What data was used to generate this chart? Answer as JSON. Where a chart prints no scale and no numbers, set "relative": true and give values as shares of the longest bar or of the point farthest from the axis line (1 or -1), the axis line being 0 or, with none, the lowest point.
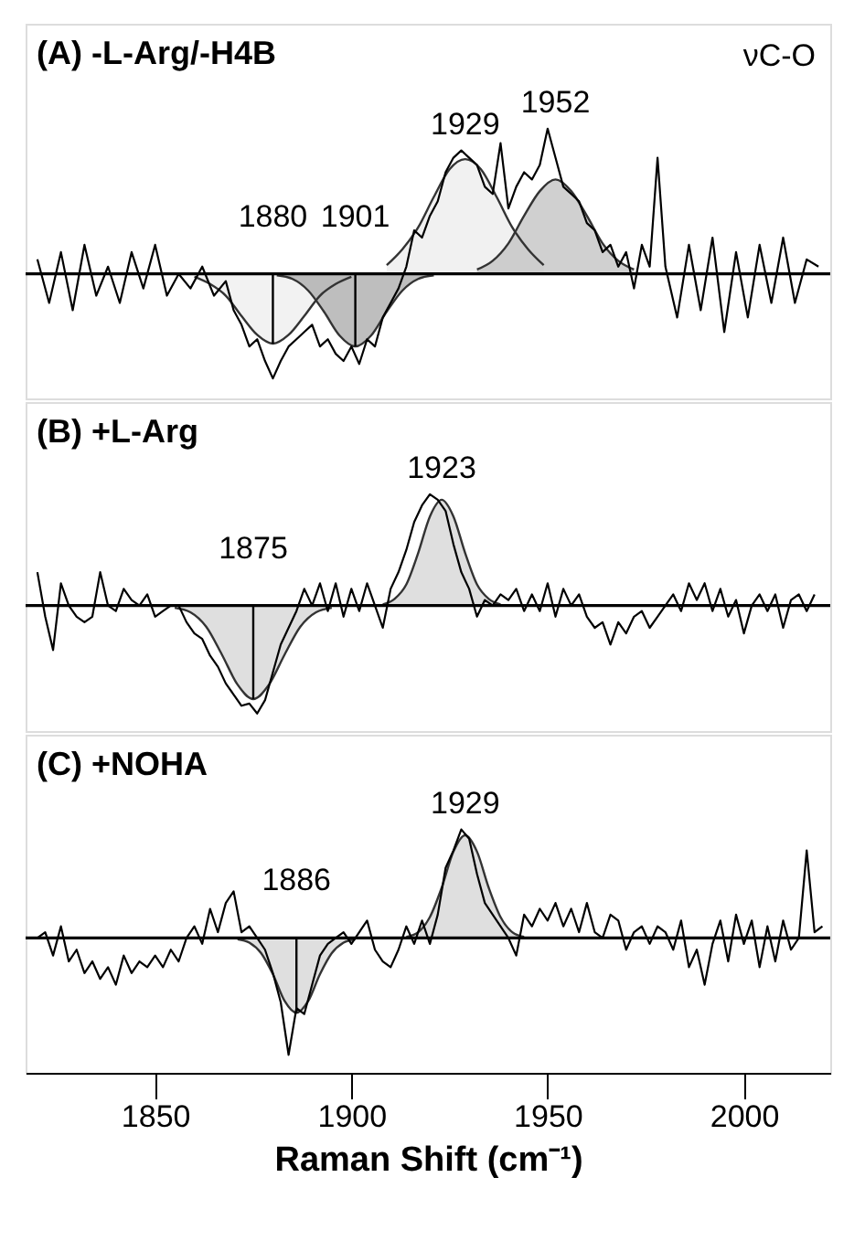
{
  "chart_data": [
    {
      "type": "line",
      "title": "(A) -L-Arg/-H4B",
      "relative": true,
      "xlim": [
        1817,
        2022
      ],
      "tick_labels": false,
      "grid": false,
      "annotations": [
        "νC-O",
        {
          "text": "1880",
          "x": 1880,
          "y": -0.48
        },
        {
          "text": "1901",
          "x": 1901,
          "y": -0.5
        },
        {
          "text": "1929",
          "x": 1929,
          "y": 0.79
        },
        {
          "text": "1952",
          "x": 1952,
          "y": 0.65
        }
      ],
      "series": [
        {
          "type": "area",
          "color": "#eeeeee",
          "x": [
            1860,
            1864,
            1868,
            1872,
            1876,
            1880,
            1884,
            1888,
            1892,
            1896,
            1900
          ],
          "values": [
            -0.02,
            -0.07,
            -0.15,
            -0.29,
            -0.42,
            -0.48,
            -0.42,
            -0.29,
            -0.15,
            -0.07,
            -0.02
          ]
        },
        {
          "type": "area",
          "color": "#a8a8a8",
          "x": [
            1881,
            1885,
            1889,
            1893,
            1897,
            1901,
            1905,
            1909,
            1913,
            1917,
            1921
          ],
          "values": [
            -0.01,
            -0.035,
            -0.115,
            -0.26,
            -0.425,
            -0.5,
            -0.425,
            -0.26,
            -0.115,
            -0.035,
            -0.01
          ]
        },
        {
          "type": "area",
          "color": "#ececec",
          "x": [
            1909,
            1913,
            1917,
            1921,
            1925,
            1929,
            1933,
            1937,
            1941,
            1945,
            1949
          ],
          "values": [
            0.06,
            0.17,
            0.32,
            0.53,
            0.72,
            0.79,
            0.72,
            0.53,
            0.32,
            0.17,
            0.06
          ]
        },
        {
          "type": "area",
          "color": "#c0c0c0",
          "x": [
            1932,
            1936,
            1940,
            1944,
            1948,
            1952,
            1956,
            1960,
            1964,
            1968,
            1972
          ],
          "values": [
            0.03,
            0.09,
            0.21,
            0.4,
            0.57,
            0.65,
            0.57,
            0.4,
            0.21,
            0.09,
            0.03
          ]
        },
        {
          "color": "#000000",
          "x": [
            1820,
            1823,
            1826,
            1829,
            1832,
            1835,
            1838,
            1841,
            1844,
            1847,
            1850,
            1853,
            1856,
            1859,
            1862,
            1865,
            1868,
            1870,
            1872,
            1874,
            1876,
            1878,
            1880,
            1882,
            1884,
            1886,
            1888,
            1890,
            1892,
            1894,
            1896,
            1898,
            1900,
            1902,
            1904,
            1906,
            1908,
            1910,
            1912,
            1914,
            1916,
            1918,
            1920,
            1922,
            1924,
            1926,
            1928,
            1930,
            1932,
            1934,
            1936,
            1938,
            1940,
            1942,
            1944,
            1946,
            1948,
            1950,
            1952,
            1954,
            1956,
            1958,
            1960,
            1962,
            1964,
            1966,
            1968,
            1970,
            1972,
            1974,
            1976,
            1978,
            1980,
            1983,
            1986,
            1989,
            1992,
            1995,
            1998,
            2001,
            2004,
            2007,
            2010,
            2013,
            2016,
            2019
          ],
          "values": [
            0.1,
            -0.2,
            0.15,
            -0.25,
            0.2,
            -0.15,
            0.05,
            -0.2,
            0.15,
            -0.1,
            0.2,
            -0.15,
            0.0,
            -0.1,
            0.05,
            -0.15,
            -0.05,
            -0.25,
            -0.35,
            -0.5,
            -0.45,
            -0.6,
            -0.72,
            -0.6,
            -0.5,
            -0.45,
            -0.4,
            -0.35,
            -0.5,
            -0.45,
            -0.55,
            -0.6,
            -0.5,
            -0.62,
            -0.45,
            -0.5,
            -0.3,
            -0.2,
            -0.1,
            0.05,
            0.3,
            0.25,
            0.4,
            0.5,
            0.7,
            0.8,
            0.85,
            0.8,
            0.75,
            0.6,
            0.55,
            0.9,
            0.45,
            0.6,
            0.7,
            0.65,
            0.75,
            1.0,
            0.8,
            0.6,
            0.55,
            0.5,
            0.35,
            0.3,
            0.15,
            0.2,
            0.05,
            0.15,
            -0.1,
            0.2,
            0.05,
            0.8,
            0.05,
            -0.3,
            0.2,
            -0.25,
            0.25,
            -0.4,
            0.15,
            -0.3,
            0.2,
            -0.2,
            0.25,
            -0.2,
            0.1,
            0.05
          ]
        }
      ]
    },
    {
      "type": "line",
      "title": "(B) +L-Arg",
      "relative": true,
      "xlim": [
        1817,
        2022
      ],
      "tick_labels": false,
      "grid": false,
      "annotations": [
        {
          "text": "1875",
          "x": 1875,
          "y": -0.84
        },
        {
          "text": "1923",
          "x": 1923,
          "y": 0.95
        }
      ],
      "series": [
        {
          "type": "area",
          "color": "#d4d4d4",
          "x": [
            1855,
            1859,
            1863,
            1867,
            1871,
            1875,
            1879,
            1883,
            1887,
            1891,
            1895
          ],
          "values": [
            -0.02,
            -0.06,
            -0.19,
            -0.44,
            -0.71,
            -0.84,
            -0.71,
            -0.44,
            -0.19,
            -0.06,
            -0.02
          ]
        },
        {
          "type": "area",
          "color": "#d4d4d4",
          "x": [
            1908,
            1911,
            1914,
            1917,
            1920,
            1923,
            1926,
            1929,
            1932,
            1935,
            1938
          ],
          "values": [
            0.01,
            0.06,
            0.19,
            0.47,
            0.8,
            0.95,
            0.8,
            0.47,
            0.19,
            0.06,
            0.01
          ]
        },
        {
          "color": "#000000",
          "x": [
            1820,
            1822,
            1824,
            1826,
            1828,
            1830,
            1832,
            1834,
            1836,
            1838,
            1840,
            1842,
            1844,
            1846,
            1848,
            1850,
            1852,
            1854,
            1856,
            1858,
            1860,
            1862,
            1864,
            1866,
            1868,
            1870,
            1872,
            1874,
            1876,
            1878,
            1880,
            1882,
            1884,
            1886,
            1888,
            1890,
            1892,
            1894,
            1896,
            1898,
            1900,
            1902,
            1904,
            1906,
            1908,
            1910,
            1912,
            1914,
            1916,
            1918,
            1920,
            1922,
            1924,
            1926,
            1928,
            1930,
            1932,
            1934,
            1936,
            1938,
            1940,
            1942,
            1944,
            1946,
            1948,
            1950,
            1952,
            1954,
            1956,
            1958,
            1960,
            1962,
            1964,
            1966,
            1968,
            1970,
            1972,
            1974,
            1976,
            1978,
            1980,
            1982,
            1984,
            1986,
            1988,
            1990,
            1992,
            1994,
            1996,
            1998,
            2000,
            2002,
            2004,
            2006,
            2008,
            2010,
            2012,
            2014,
            2016,
            2018
          ],
          "values": [
            0.3,
            -0.1,
            -0.4,
            0.2,
            0.0,
            -0.1,
            -0.15,
            -0.1,
            0.3,
            0.0,
            -0.05,
            0.15,
            0.05,
            0.0,
            0.1,
            -0.1,
            -0.05,
            0.0,
            0.0,
            -0.15,
            -0.25,
            -0.3,
            -0.45,
            -0.55,
            -0.7,
            -0.8,
            -0.9,
            -0.88,
            -0.97,
            -0.85,
            -0.6,
            -0.35,
            -0.2,
            -0.05,
            0.15,
            0.0,
            0.2,
            -0.05,
            0.2,
            -0.1,
            0.15,
            -0.05,
            0.2,
            0.0,
            -0.2,
            0.15,
            0.3,
            0.5,
            0.75,
            0.9,
            1.0,
            0.95,
            0.85,
            0.55,
            0.3,
            0.15,
            -0.1,
            0.05,
            0.0,
            0.1,
            0.05,
            0.15,
            -0.05,
            0.1,
            -0.05,
            0.2,
            -0.1,
            0.15,
            0.0,
            0.1,
            -0.1,
            -0.2,
            -0.15,
            -0.35,
            -0.15,
            -0.25,
            -0.1,
            -0.05,
            -0.2,
            -0.1,
            0.0,
            0.1,
            -0.05,
            0.2,
            0.05,
            0.2,
            -0.05,
            0.15,
            -0.1,
            0.05,
            -0.25,
            0.0,
            0.1,
            -0.05,
            0.1,
            -0.2,
            0.05,
            0.1,
            -0.05,
            0.1
          ]
        }
      ]
    },
    {
      "type": "line",
      "title": "(C) +NOHA",
      "relative": true,
      "xlim": [
        1817,
        2022
      ],
      "xticks": [
        1850,
        1900,
        1950,
        2000
      ],
      "tick_labels": "x",
      "xlabel": "Raman Shift (cm⁻¹)",
      "grid": false,
      "annotations": [
        {
          "text": "1886",
          "x": 1886,
          "y": -0.64
        },
        {
          "text": "1929",
          "x": 1929,
          "y": 0.88
        }
      ],
      "series": [
        {
          "type": "area",
          "color": "#d4d4d4",
          "x": [
            1871,
            1874,
            1877,
            1880,
            1883,
            1886,
            1889,
            1892,
            1895,
            1898,
            1901
          ],
          "values": [
            -0.01,
            -0.04,
            -0.13,
            -0.31,
            -0.54,
            -0.64,
            -0.54,
            -0.31,
            -0.13,
            -0.04,
            -0.01
          ]
        },
        {
          "type": "area",
          "color": "#d4d4d4",
          "x": [
            1914,
            1917,
            1920,
            1923,
            1926,
            1929,
            1932,
            1935,
            1938,
            1941,
            1944
          ],
          "values": [
            0.01,
            0.05,
            0.18,
            0.43,
            0.74,
            0.88,
            0.74,
            0.43,
            0.18,
            0.05,
            0.01
          ]
        },
        {
          "color": "#000000",
          "x": [
            1820,
            1822,
            1824,
            1826,
            1828,
            1830,
            1832,
            1834,
            1836,
            1838,
            1840,
            1842,
            1844,
            1846,
            1848,
            1850,
            1852,
            1854,
            1856,
            1858,
            1860,
            1862,
            1864,
            1866,
            1868,
            1870,
            1872,
            1874,
            1876,
            1878,
            1880,
            1882,
            1884,
            1886,
            1888,
            1890,
            1892,
            1894,
            1896,
            1898,
            1900,
            1902,
            1904,
            1906,
            1908,
            1910,
            1912,
            1914,
            1916,
            1918,
            1920,
            1922,
            1924,
            1926,
            1928,
            1930,
            1932,
            1934,
            1936,
            1938,
            1940,
            1942,
            1944,
            1946,
            1948,
            1950,
            1952,
            1954,
            1956,
            1958,
            1960,
            1962,
            1964,
            1966,
            1968,
            1970,
            1972,
            1974,
            1976,
            1978,
            1980,
            1982,
            1984,
            1986,
            1988,
            1990,
            1992,
            1994,
            1996,
            1998,
            2000,
            2002,
            2004,
            2006,
            2008,
            2010,
            2012,
            2014,
            2016,
            2018,
            2020
          ],
          "values": [
            0.0,
            0.05,
            -0.15,
            0.1,
            -0.2,
            -0.1,
            -0.3,
            -0.2,
            -0.35,
            -0.25,
            -0.4,
            -0.15,
            -0.3,
            -0.2,
            -0.25,
            -0.15,
            -0.25,
            -0.1,
            -0.2,
            0.0,
            0.1,
            -0.05,
            0.25,
            0.05,
            0.3,
            0.4,
            0.05,
            0.1,
            0.0,
            -0.1,
            -0.3,
            -0.55,
            -1.0,
            -0.6,
            -0.65,
            -0.4,
            -0.15,
            -0.05,
            0.0,
            0.05,
            -0.05,
            0.05,
            0.15,
            -0.1,
            -0.2,
            -0.25,
            -0.1,
            0.1,
            -0.05,
            0.15,
            -0.05,
            0.2,
            0.6,
            0.75,
            0.93,
            0.85,
            0.55,
            0.3,
            0.2,
            0.1,
            0.0,
            -0.15,
            0.2,
            0.1,
            0.25,
            0.15,
            0.3,
            0.1,
            0.25,
            0.05,
            0.3,
            0.05,
            0.0,
            0.2,
            0.15,
            -0.1,
            0.05,
            0.1,
            -0.05,
            0.1,
            0.05,
            -0.1,
            0.15,
            -0.25,
            -0.1,
            -0.4,
            -0.05,
            0.15,
            -0.2,
            0.2,
            -0.05,
            0.15,
            -0.25,
            0.1,
            -0.2,
            0.15,
            -0.1,
            0.0,
            0.75,
            0.05,
            0.1
          ]
        }
      ]
    }
  ]
}
